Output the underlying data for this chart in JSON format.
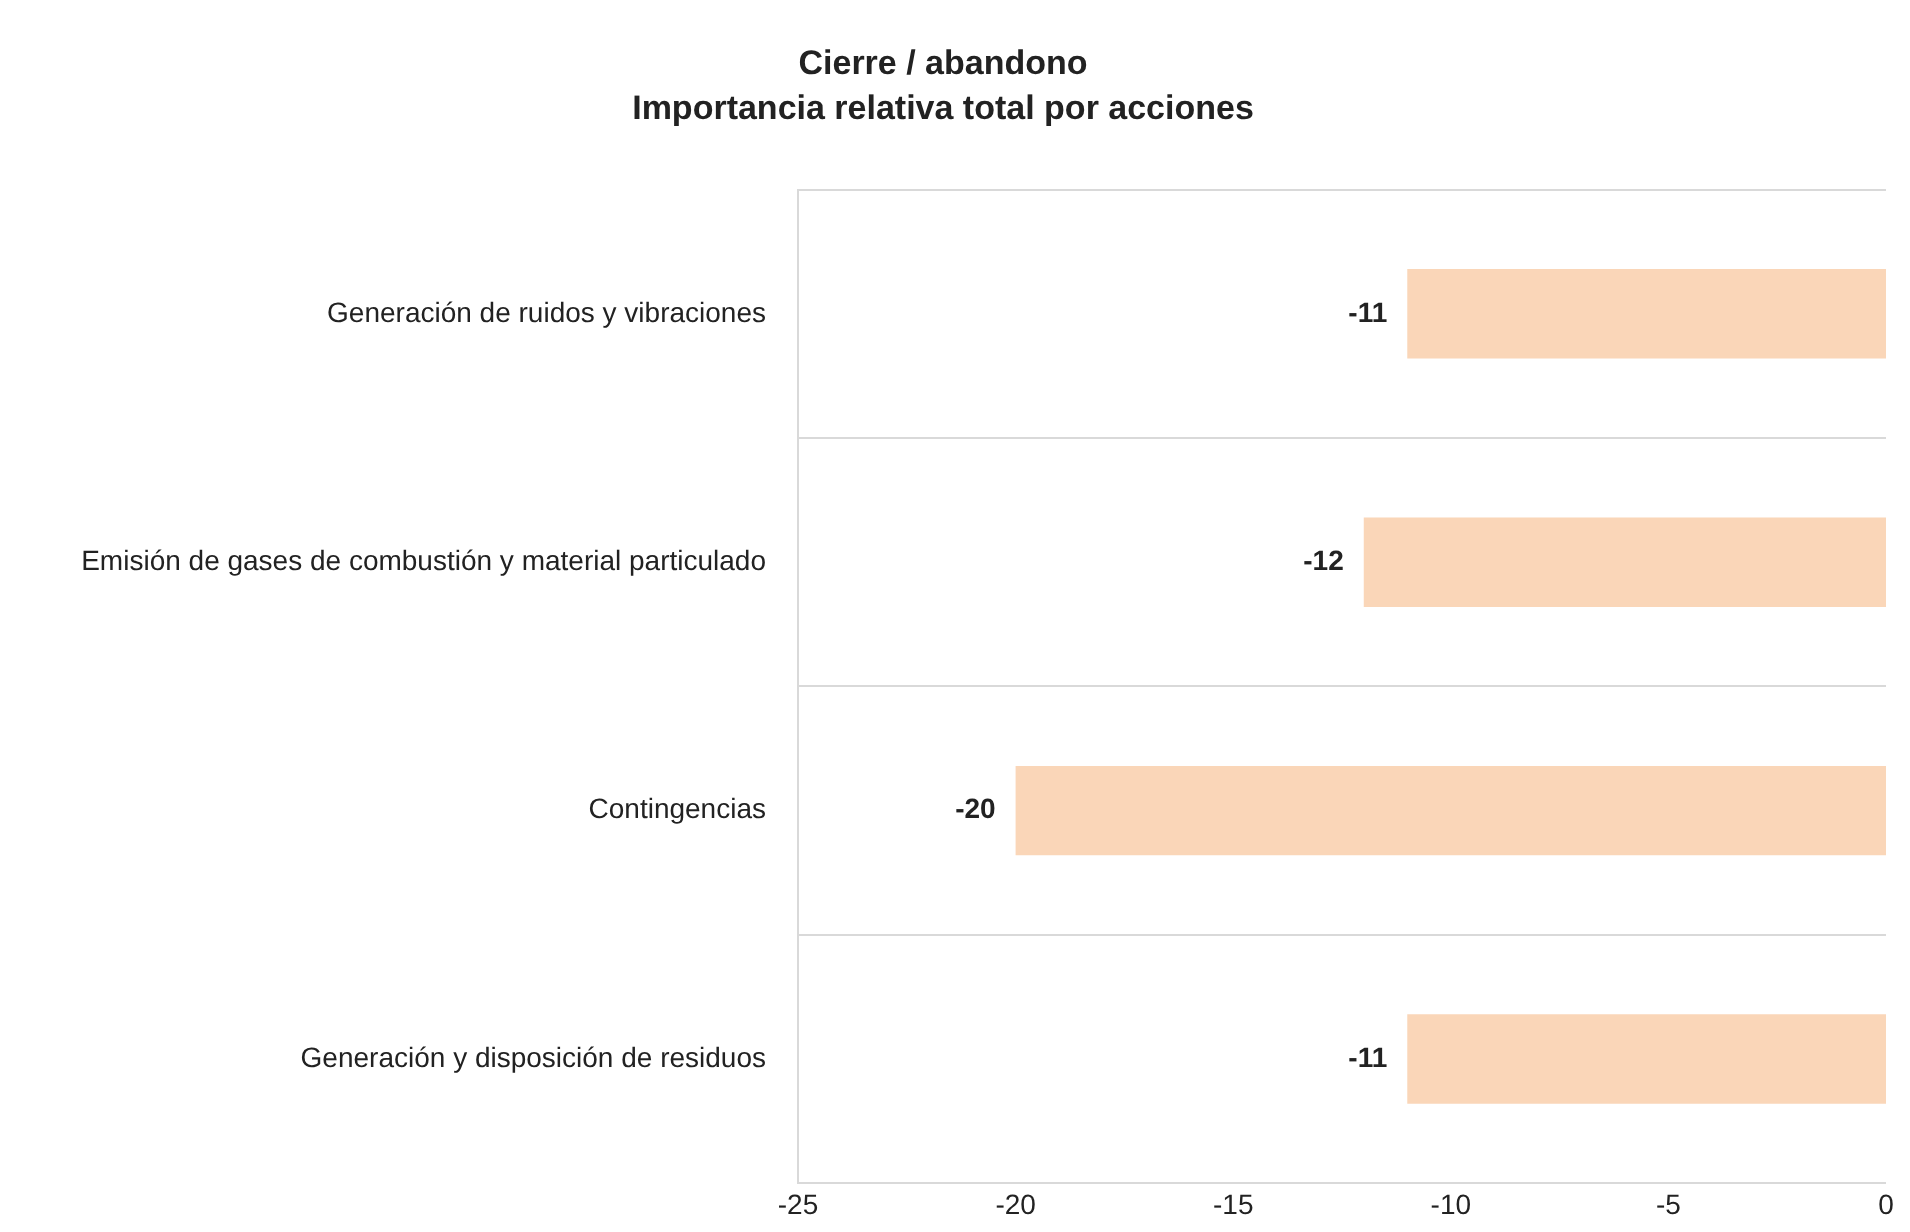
{
  "chart_data": {
    "type": "bar",
    "orientation": "horizontal",
    "title": "Cierre / abandono",
    "subtitle": "Importancia relativa total por acciones",
    "categories": [
      "Generación de ruidos y vibraciones",
      "Emisión de gases de combustión y material particulado",
      "Contingencias",
      "Generación y disposición de residuos"
    ],
    "values": [
      -11,
      -12,
      -20,
      -11
    ],
    "color": "#fad6b8",
    "xlim": [
      -25,
      0
    ],
    "xticks": [
      -25,
      -20,
      -15,
      -10,
      -5,
      0
    ],
    "grid": "y",
    "data_labels": true,
    "legend": false
  }
}
